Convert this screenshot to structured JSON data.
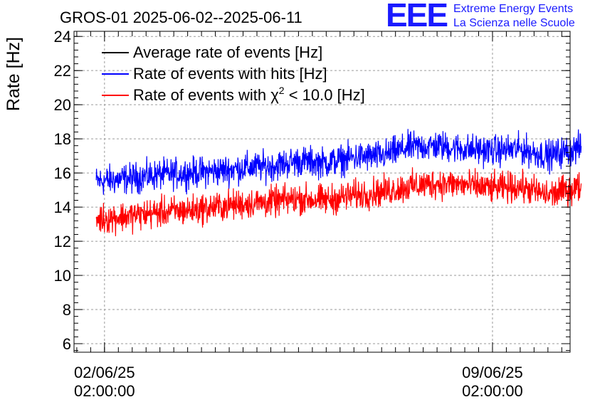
{
  "chart_data": {
    "type": "line",
    "title": "GROS-01 2025-06-02--2025-06-11",
    "ylabel": "Rate [Hz]",
    "xlabel": "",
    "ylim": [
      5.5,
      24.3
    ],
    "yticks": [
      6,
      8,
      10,
      12,
      14,
      16,
      18,
      20,
      22,
      24
    ],
    "xlim_days": [
      -0.55,
      8.4
    ],
    "xticks": [
      {
        "day": 0,
        "date": "02/06/25",
        "time": "02:00:00"
      },
      {
        "day": 7,
        "date": "09/06/25",
        "time": "02:00:00"
      }
    ],
    "grid": true,
    "legend_position": "top-left",
    "series": [
      {
        "name": "Average rate of events [Hz]",
        "color": "#000000",
        "values": []
      },
      {
        "name": "Rate of events with hits [Hz]",
        "color": "#0000ff",
        "x_days": [
          -0.15,
          0.5,
          1.0,
          1.5,
          2.0,
          2.5,
          3.0,
          3.5,
          4.0,
          4.5,
          5.0,
          5.5,
          6.0,
          6.5,
          7.0,
          7.5,
          8.0,
          8.6
        ],
        "values": [
          15.5,
          15.7,
          15.9,
          16.0,
          16.1,
          16.3,
          16.4,
          16.7,
          16.6,
          16.9,
          17.0,
          17.5,
          17.6,
          17.4,
          17.3,
          17.4,
          17.0,
          17.5
        ],
        "spread": 0.8
      },
      {
        "name": "Rate of events with χ² < 10.0 [Hz]",
        "color": "#ff0000",
        "x_days": [
          -0.15,
          0.5,
          1.0,
          1.5,
          2.0,
          2.5,
          3.0,
          3.5,
          4.0,
          4.5,
          5.0,
          5.5,
          6.0,
          6.5,
          7.0,
          7.5,
          8.0,
          8.6
        ],
        "values": [
          13.3,
          13.5,
          13.7,
          13.8,
          14.0,
          14.2,
          14.3,
          14.5,
          14.4,
          14.7,
          14.9,
          15.2,
          15.4,
          15.3,
          15.1,
          15.2,
          14.7,
          15.2
        ],
        "spread": 0.8
      }
    ],
    "legend": {
      "avg_label": "Average rate of events [Hz]",
      "hits_label": "Rate of events with hits [Hz]",
      "chi_prefix": "Rate of events with ",
      "chi_symbol": "χ",
      "chi_exp": "2",
      "chi_suffix": " < 10.0 [Hz]"
    }
  },
  "logo": {
    "mark": "EEE",
    "line1": "Extreme Energy Events",
    "line2": "La Scienza nelle Scuole",
    "color": "#1a1aff"
  }
}
